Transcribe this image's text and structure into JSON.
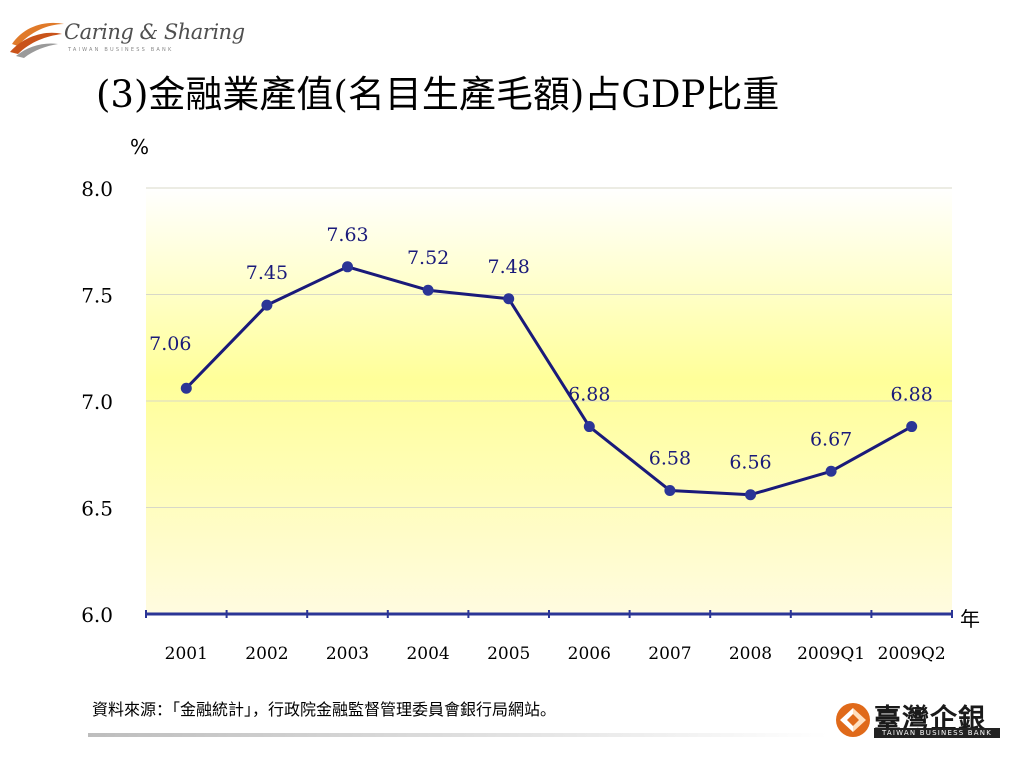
{
  "header": {
    "logo_text": "Caring & Sharing",
    "logo_subtext": "TAIWAN BUSINESS BANK"
  },
  "slide": {
    "title": "(3)金融業產值(名目生產毛額)占GDP比重",
    "source_note": "資料來源：「金融統計」，行政院金融監督管理委員會銀行局網站。"
  },
  "brand": {
    "name": "臺灣企銀",
    "subtext": "TAIWAN BUSINESS BANK"
  },
  "colors": {
    "line": "#1a1a7a",
    "marker": "#2b3596",
    "data_label": "#1a1a7a",
    "plot_top": "#ffffff",
    "plot_mid": "#ffff99",
    "axis": "#2b3596"
  },
  "chart_data": {
    "type": "line",
    "title": "",
    "ylabel": "%",
    "xlabel": "年",
    "ylim": [
      6.0,
      8.0
    ],
    "yticks": [
      "6.0",
      "6.5",
      "7.0",
      "7.5",
      "8.0"
    ],
    "grid": true,
    "categories": [
      "2001",
      "2002",
      "2003",
      "2004",
      "2005",
      "2006",
      "2007",
      "2008",
      "2009Q1",
      "2009Q2"
    ],
    "values": [
      7.06,
      7.45,
      7.63,
      7.52,
      7.48,
      6.88,
      6.58,
      6.56,
      6.67,
      6.88
    ],
    "value_labels": [
      "7.06",
      "7.45",
      "7.63",
      "7.52",
      "7.48",
      "6.88",
      "6.58",
      "6.56",
      "6.67",
      "6.88"
    ]
  }
}
